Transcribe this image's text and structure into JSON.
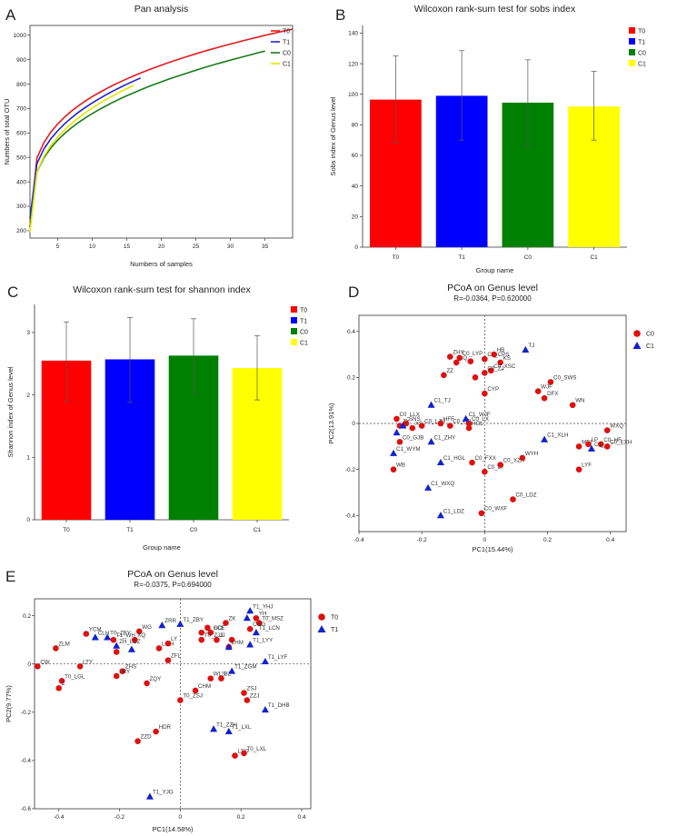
{
  "colors": {
    "T0": "#ff0000",
    "T1": "#0000ff",
    "C0": "#008000",
    "C1": "#ffff00",
    "T0_curve": "#e41a1c",
    "T1_curve": "#2222cc",
    "C0_curve": "#1a7a1a",
    "C1_curve": "#e5e500",
    "point_c0": "#dd1111",
    "point_c1": "#1122cc"
  },
  "chart_data": [
    {
      "id": "A",
      "letter": "A",
      "type": "line",
      "title": "Pan analysis",
      "xlabel": "Numbers of samples",
      "ylabel": "Numbers of total OTU",
      "xlim": [
        1,
        39
      ],
      "ylim": [
        170,
        1040
      ],
      "xticks": [
        5,
        10,
        15,
        20,
        25,
        30,
        35
      ],
      "yticks": [
        200,
        300,
        400,
        500,
        600,
        700,
        800,
        900,
        1000
      ],
      "legend": [
        "T0",
        "T1",
        "C0",
        "C1"
      ],
      "series": [
        {
          "name": "T0",
          "n": 39,
          "start": 215,
          "end": 1025
        },
        {
          "name": "T1",
          "n": 17,
          "start": 250,
          "end": 825
        },
        {
          "name": "C0",
          "n": 35,
          "start": 215,
          "end": 935
        },
        {
          "name": "C1",
          "n": 16,
          "start": 195,
          "end": 795
        }
      ]
    },
    {
      "id": "B",
      "letter": "B",
      "type": "bar",
      "title": "Wilcoxon rank-sum test for sobs index",
      "xlabel": "Group name",
      "ylabel": "Sobs index of Genus level",
      "ylim": [
        0,
        145
      ],
      "yticks": [
        0,
        20,
        40,
        60,
        80,
        100,
        120,
        140
      ],
      "categories": [
        "T0",
        "T1",
        "C0",
        "C1"
      ],
      "values": [
        96.5,
        99.0,
        94.5,
        92.0
      ],
      "err_low": [
        68,
        70,
        66,
        70
      ],
      "err_high": [
        125,
        128.5,
        122.5,
        115
      ]
    },
    {
      "id": "C",
      "letter": "C",
      "type": "bar",
      "title": "Wilcoxon rank-sum test for shannon index",
      "xlabel": "Group name",
      "ylabel": "Shannon index of Genus level",
      "ylim": [
        0,
        3.45
      ],
      "yticks": [
        0,
        1,
        2,
        3
      ],
      "categories": [
        "T0",
        "T1",
        "C0",
        "C1"
      ],
      "values": [
        2.55,
        2.57,
        2.63,
        2.43
      ],
      "err_low": [
        1.9,
        1.88,
        2.02,
        1.92
      ],
      "err_high": [
        3.17,
        3.24,
        3.22,
        2.95
      ]
    },
    {
      "id": "D",
      "letter": "D",
      "type": "scatter",
      "title": "PCoA on Genus level",
      "subtitle": "R=-0.0364, P=0.620000",
      "xlabel": "PC1(15.44%)",
      "ylabel": "PC2(13.91%)",
      "xlim": [
        -0.4,
        0.45
      ],
      "ylim": [
        -0.47,
        0.47
      ],
      "xticks": [
        -0.4,
        -0.2,
        0.0,
        0.2,
        0.4
      ],
      "yticks": [
        -0.4,
        -0.2,
        0.0,
        0.2,
        0.4
      ],
      "legend": [
        "C0",
        "C1"
      ],
      "points": [
        {
          "g": "C0",
          "x": -0.13,
          "y": 0.21,
          "label": "ZZ"
        },
        {
          "g": "C0",
          "x": -0.11,
          "y": 0.29,
          "label": "ZHY"
        },
        {
          "g": "C0",
          "x": -0.09,
          "y": 0.265,
          "label": "SQ"
        },
        {
          "g": "C0",
          "x": -0.08,
          "y": 0.285,
          "label": "C0_LYP"
        },
        {
          "g": "C0",
          "x": -0.045,
          "y": 0.27,
          "label": ""
        },
        {
          "g": "C0",
          "x": -0.03,
          "y": 0.2,
          "label": ""
        },
        {
          "g": "C0",
          "x": 0.0,
          "y": 0.28,
          "label": "C0_CPS"
        },
        {
          "g": "C0",
          "x": 0.03,
          "y": 0.3,
          "label": "HB"
        },
        {
          "g": "C0",
          "x": 0.05,
          "y": 0.265,
          "label": "KS"
        },
        {
          "g": "C0",
          "x": 0.02,
          "y": 0.23,
          "label": "C0_XSC"
        },
        {
          "g": "C0",
          "x": 0.0,
          "y": 0.22,
          "label": "C0_ZJ"
        },
        {
          "g": "C0",
          "x": 0.0,
          "y": 0.13,
          "label": "CYP"
        },
        {
          "g": "C0",
          "x": 0.21,
          "y": 0.18,
          "label": "C0_SWS"
        },
        {
          "g": "C0",
          "x": 0.17,
          "y": 0.14,
          "label": "WJF"
        },
        {
          "g": "C0",
          "x": 0.19,
          "y": 0.11,
          "label": "DFX"
        },
        {
          "g": "C0",
          "x": 0.28,
          "y": 0.08,
          "label": "WN"
        },
        {
          "g": "C0",
          "x": -0.28,
          "y": 0.02,
          "label": "C0_LLX"
        },
        {
          "g": "C0",
          "x": -0.27,
          "y": -0.01,
          "label": "ZY"
        },
        {
          "g": "C0",
          "x": -0.25,
          "y": 0.0,
          "label": "SNS"
        },
        {
          "g": "C0",
          "x": -0.23,
          "y": -0.02,
          "label": "XS"
        },
        {
          "g": "C0",
          "x": -0.2,
          "y": -0.01,
          "label": "C0_LJM"
        },
        {
          "g": "C0",
          "x": -0.14,
          "y": 0.0,
          "label": "HFF"
        },
        {
          "g": "C0",
          "x": -0.11,
          "y": -0.01,
          "label": "C0_HB"
        },
        {
          "g": "C0",
          "x": -0.05,
          "y": 0.0,
          "label": "C0_LX"
        },
        {
          "g": "C0",
          "x": -0.05,
          "y": -0.02,
          "label": "HGL"
        },
        {
          "g": "C0",
          "x": -0.27,
          "y": -0.08,
          "label": "C0_GJB"
        },
        {
          "g": "C0",
          "x": -0.29,
          "y": -0.2,
          "label": "WB"
        },
        {
          "g": "C0",
          "x": -0.04,
          "y": -0.17,
          "label": "C0_FXX"
        },
        {
          "g": "C0",
          "x": 0.0,
          "y": -0.21,
          "label": "C0_LY"
        },
        {
          "g": "C0",
          "x": 0.05,
          "y": -0.18,
          "label": "C0_XZH"
        },
        {
          "g": "C0",
          "x": 0.12,
          "y": -0.15,
          "label": "WYH"
        },
        {
          "g": "C0",
          "x": 0.09,
          "y": -0.33,
          "label": "C0_LDZ"
        },
        {
          "g": "C0",
          "x": -0.01,
          "y": -0.39,
          "label": "C0_WXF"
        },
        {
          "g": "C0",
          "x": 0.3,
          "y": -0.2,
          "label": "LYF"
        },
        {
          "g": "C0",
          "x": 0.3,
          "y": -0.1,
          "label": "MEI"
        },
        {
          "g": "C0",
          "x": 0.39,
          "y": -0.03,
          "label": "WXQ"
        },
        {
          "g": "C0",
          "x": 0.37,
          "y": -0.09,
          "label": "C0_HF"
        },
        {
          "g": "C0",
          "x": 0.39,
          "y": -0.1,
          "label": "C0_EXH"
        },
        {
          "g": "C0",
          "x": 0.33,
          "y": -0.09,
          "label": "LP"
        },
        {
          "g": "C1",
          "x": 0.13,
          "y": 0.32,
          "label": "TJ"
        },
        {
          "g": "C1",
          "x": -0.17,
          "y": 0.08,
          "label": "C1_TJ"
        },
        {
          "g": "C1",
          "x": -0.06,
          "y": 0.02,
          "label": "C1_WJF"
        },
        {
          "g": "C1",
          "x": -0.28,
          "y": -0.04,
          "label": ""
        },
        {
          "g": "C1",
          "x": -0.26,
          "y": -0.01,
          "label": ""
        },
        {
          "g": "C1",
          "x": -0.17,
          "y": -0.08,
          "label": "C1_ZHY"
        },
        {
          "g": "C1",
          "x": -0.29,
          "y": -0.13,
          "label": "C1_WYM"
        },
        {
          "g": "C1",
          "x": -0.14,
          "y": -0.17,
          "label": "C1_HGL"
        },
        {
          "g": "C1",
          "x": -0.18,
          "y": -0.28,
          "label": "C1_WXQ"
        },
        {
          "g": "C1",
          "x": -0.14,
          "y": -0.4,
          "label": "C1_LDZ"
        },
        {
          "g": "C1",
          "x": 0.19,
          "y": -0.07,
          "label": "C1_XLH"
        },
        {
          "g": "C1",
          "x": 0.34,
          "y": -0.11,
          "label": "C1_"
        }
      ]
    },
    {
      "id": "E",
      "letter": "E",
      "type": "scatter",
      "title": "PCoA on Genus level",
      "subtitle": "R=-0.0375, P=0.694000",
      "xlabel": "PC1(14.58%)",
      "ylabel": "PC2(9.77%)",
      "xlim": [
        -0.48,
        0.43
      ],
      "ylim": [
        -0.6,
        0.27
      ],
      "xticks": [
        -0.4,
        -0.2,
        0.0,
        0.2,
        0.4
      ],
      "yticks": [
        -0.6,
        -0.4,
        -0.2,
        0.0,
        0.2
      ],
      "legend": [
        "T0",
        "T1"
      ],
      "points": [
        {
          "g": "T0",
          "x": -0.31,
          "y": 0.125,
          "label": "YCM"
        },
        {
          "g": "T0",
          "x": -0.41,
          "y": 0.065,
          "label": "ZLM"
        },
        {
          "g": "T0",
          "x": -0.47,
          "y": -0.01,
          "label": "CW"
        },
        {
          "g": "T0",
          "x": -0.33,
          "y": -0.01,
          "label": "LTY"
        },
        {
          "g": "T0",
          "x": -0.39,
          "y": -0.07,
          "label": "T0_LGL"
        },
        {
          "g": "T0",
          "x": -0.4,
          "y": -0.1,
          "label": "Z"
        },
        {
          "g": "T0",
          "x": -0.22,
          "y": 0.1,
          "label": "T1_WH"
        },
        {
          "g": "T0",
          "x": -0.21,
          "y": 0.05,
          "label": ""
        },
        {
          "g": "T0",
          "x": -0.19,
          "y": -0.03,
          "label": "ZHS"
        },
        {
          "g": "T0",
          "x": -0.21,
          "y": -0.05,
          "label": "LRY"
        },
        {
          "g": "T0",
          "x": -0.135,
          "y": 0.135,
          "label": "WG"
        },
        {
          "g": "T0",
          "x": -0.15,
          "y": 0.1,
          "label": "XQ"
        },
        {
          "g": "T0",
          "x": -0.07,
          "y": 0.065,
          "label": "L.FH"
        },
        {
          "g": "T0",
          "x": -0.04,
          "y": 0.085,
          "label": "LY"
        },
        {
          "g": "T0",
          "x": -0.04,
          "y": 0.015,
          "label": "ZFL"
        },
        {
          "g": "T0",
          "x": -0.11,
          "y": -0.08,
          "label": "ZQY"
        },
        {
          "g": "T0",
          "x": 0.07,
          "y": 0.13,
          "label": "T1_LCE"
        },
        {
          "g": "T0",
          "x": 0.1,
          "y": 0.13,
          "label": "GCL"
        },
        {
          "g": "T0",
          "x": 0.12,
          "y": 0.1,
          "label": "JJ"
        },
        {
          "g": "T0",
          "x": 0.09,
          "y": 0.15,
          "label": ""
        },
        {
          "g": "T0",
          "x": 0.07,
          "y": 0.1,
          "label": "T0_ZJJ"
        },
        {
          "g": "T0",
          "x": 0.15,
          "y": 0.17,
          "label": "ZK"
        },
        {
          "g": "T0",
          "x": 0.17,
          "y": 0.1,
          "label": ""
        },
        {
          "g": "T0",
          "x": 0.25,
          "y": 0.19,
          "label": "YH_"
        },
        {
          "g": "T0",
          "x": 0.26,
          "y": 0.17,
          "label": "T0_MSZ"
        },
        {
          "g": "T0",
          "x": 0.23,
          "y": 0.145,
          "label": "CGG"
        },
        {
          "g": "T0",
          "x": 0.16,
          "y": 0.07,
          "label": "LHM"
        },
        {
          "g": "T0",
          "x": 0.1,
          "y": -0.06,
          "label": "WLS"
        },
        {
          "g": "T0",
          "x": 0.135,
          "y": -0.06,
          "label": "BZ"
        },
        {
          "g": "T0",
          "x": 0.05,
          "y": -0.11,
          "label": "CHM"
        },
        {
          "g": "T0",
          "x": -0.0,
          "y": -0.15,
          "label": "T0_ZSJ"
        },
        {
          "g": "T0",
          "x": 0.21,
          "y": -0.12,
          "label": "ZSJ"
        },
        {
          "g": "T0",
          "x": 0.22,
          "y": -0.15,
          "label": "ZZJ"
        },
        {
          "g": "T0",
          "x": -0.08,
          "y": -0.28,
          "label": "HDR"
        },
        {
          "g": "T0",
          "x": -0.14,
          "y": -0.32,
          "label": "ZZD"
        },
        {
          "g": "T0",
          "x": 0.18,
          "y": -0.38,
          "label": "LSG"
        },
        {
          "g": "T0",
          "x": 0.21,
          "y": -0.37,
          "label": "T0_LXL"
        },
        {
          "g": "T1",
          "x": -0.28,
          "y": 0.11,
          "label": "CLH"
        },
        {
          "g": "T1",
          "x": -0.24,
          "y": 0.11,
          "label": "T0_ZBY"
        },
        {
          "g": "T1",
          "x": -0.21,
          "y": 0.075,
          "label": "ZH_LDZ"
        },
        {
          "g": "T1",
          "x": -0.16,
          "y": 0.06,
          "label": ""
        },
        {
          "g": "T1",
          "x": -0.06,
          "y": 0.16,
          "label": "ZRR"
        },
        {
          "g": "T1",
          "x": 0.0,
          "y": 0.165,
          "label": "T1_ZBY"
        },
        {
          "g": "T1",
          "x": 0.22,
          "y": 0.19,
          "label": ""
        },
        {
          "g": "T1",
          "x": 0.23,
          "y": 0.22,
          "label": "T1_YHJ"
        },
        {
          "g": "T1",
          "x": 0.25,
          "y": 0.13,
          "label": "T1_LCN"
        },
        {
          "g": "T1",
          "x": 0.23,
          "y": 0.08,
          "label": "T1_LYY"
        },
        {
          "g": "T1",
          "x": 0.16,
          "y": 0.07,
          "label": ""
        },
        {
          "g": "T1",
          "x": 0.28,
          "y": 0.01,
          "label": "T1_LYF"
        },
        {
          "g": "T1",
          "x": 0.17,
          "y": -0.03,
          "label": "T1_ZGM"
        },
        {
          "g": "T1",
          "x": 0.28,
          "y": -0.19,
          "label": "T1_DHB"
        },
        {
          "g": "T1",
          "x": 0.11,
          "y": -0.27,
          "label": "T1_ZZH"
        },
        {
          "g": "T1",
          "x": 0.16,
          "y": -0.28,
          "label": "T1_LXL"
        },
        {
          "g": "T1",
          "x": -0.1,
          "y": -0.55,
          "label": "T1_YJG"
        }
      ]
    }
  ]
}
